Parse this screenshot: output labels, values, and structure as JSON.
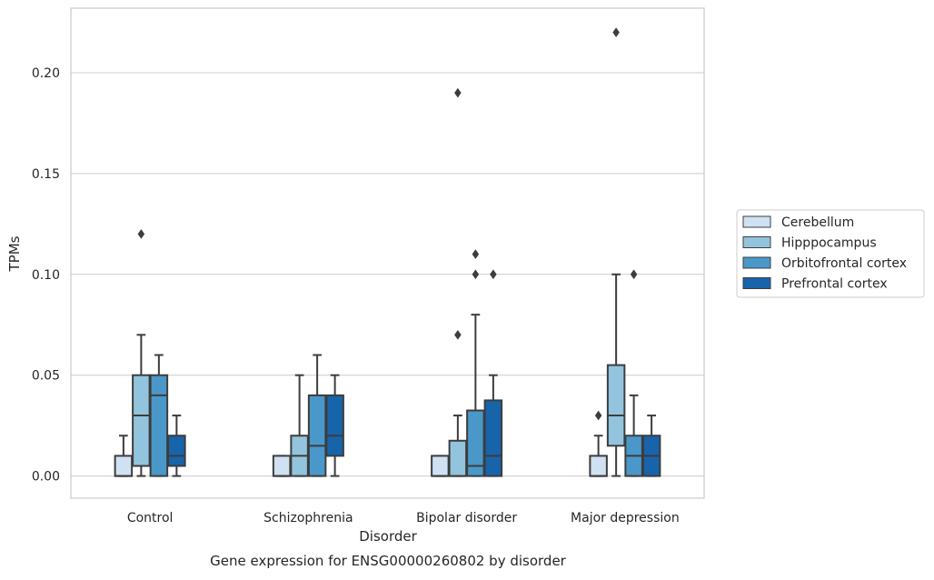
{
  "chart_data": {
    "type": "box",
    "title": "",
    "caption": "Gene expression for ENSG00000260802 by disorder",
    "xlabel": "Disorder",
    "ylabel": "TPMs",
    "ylim": [
      -0.011,
      0.232
    ],
    "yticks": [
      0.0,
      0.05,
      0.1,
      0.15,
      0.2
    ],
    "ytick_labels": [
      "0.00",
      "0.05",
      "0.10",
      "0.15",
      "0.20"
    ],
    "grid": "horizontal",
    "legend_position": "right",
    "categories": [
      "Control",
      "Schizophrenia",
      "Bipolar disorder",
      "Major depression"
    ],
    "series": [
      {
        "name": "Cerebellum",
        "color": "#cfe1f2",
        "boxes": [
          {
            "whislo": 0.0,
            "q1": 0.0,
            "med": 0.0,
            "q3": 0.01,
            "whishi": 0.02,
            "fliers": []
          },
          {
            "whislo": 0.0,
            "q1": 0.0,
            "med": 0.0,
            "q3": 0.01,
            "whishi": 0.01,
            "fliers": []
          },
          {
            "whislo": 0.0,
            "q1": 0.0,
            "med": 0.0,
            "q3": 0.01,
            "whishi": 0.01,
            "fliers": []
          },
          {
            "whislo": 0.0,
            "q1": 0.0,
            "med": 0.0,
            "q3": 0.01,
            "whishi": 0.02,
            "fliers": [
              0.03
            ]
          }
        ]
      },
      {
        "name": "Hipppocampus",
        "color": "#93c4de",
        "boxes": [
          {
            "whislo": 0.0,
            "q1": 0.005,
            "med": 0.03,
            "q3": 0.05,
            "whishi": 0.07,
            "fliers": [
              0.12
            ]
          },
          {
            "whislo": 0.0,
            "q1": 0.0,
            "med": 0.01,
            "q3": 0.02,
            "whishi": 0.05,
            "fliers": []
          },
          {
            "whislo": 0.0,
            "q1": 0.0,
            "med": 0.0,
            "q3": 0.0175,
            "whishi": 0.03,
            "fliers": [
              0.07,
              0.19
            ]
          },
          {
            "whislo": 0.0,
            "q1": 0.015,
            "med": 0.03,
            "q3": 0.055,
            "whishi": 0.1,
            "fliers": [
              0.22
            ]
          }
        ]
      },
      {
        "name": "Orbitofrontal cortex",
        "color": "#4a98c9",
        "boxes": [
          {
            "whislo": 0.0,
            "q1": 0.0,
            "med": 0.04,
            "q3": 0.05,
            "whishi": 0.06,
            "fliers": []
          },
          {
            "whislo": 0.0,
            "q1": 0.0,
            "med": 0.015,
            "q3": 0.04,
            "whishi": 0.06,
            "fliers": []
          },
          {
            "whislo": 0.0,
            "q1": 0.0,
            "med": 0.005,
            "q3": 0.0325,
            "whishi": 0.08,
            "fliers": [
              0.1,
              0.11
            ]
          },
          {
            "whislo": 0.0,
            "q1": 0.0,
            "med": 0.01,
            "q3": 0.02,
            "whishi": 0.04,
            "fliers": [
              0.1
            ]
          }
        ]
      },
      {
        "name": "Prefrontal cortex",
        "color": "#1764ab",
        "boxes": [
          {
            "whislo": 0.0,
            "q1": 0.005,
            "med": 0.01,
            "q3": 0.02,
            "whishi": 0.03,
            "fliers": []
          },
          {
            "whislo": 0.0,
            "q1": 0.01,
            "med": 0.02,
            "q3": 0.04,
            "whishi": 0.05,
            "fliers": []
          },
          {
            "whislo": 0.0,
            "q1": 0.0,
            "med": 0.01,
            "q3": 0.0375,
            "whishi": 0.05,
            "fliers": [
              0.1
            ]
          },
          {
            "whislo": 0.0,
            "q1": 0.0,
            "med": 0.01,
            "q3": 0.02,
            "whishi": 0.03,
            "fliers": []
          }
        ]
      }
    ],
    "colors": {
      "edge": "#3d3d3d",
      "grid": "#cccccc",
      "frame": "#cccccc",
      "text": "#262626"
    }
  }
}
